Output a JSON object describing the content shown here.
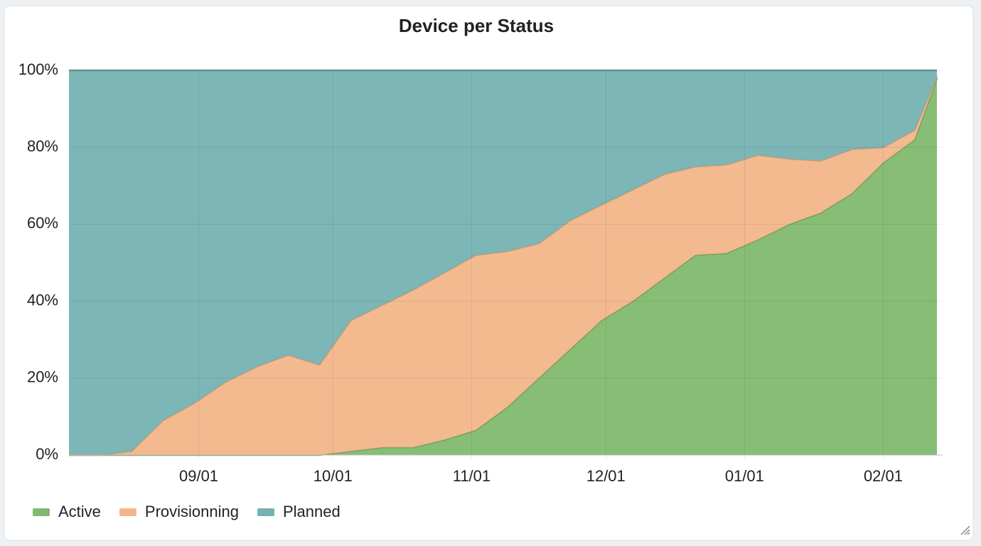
{
  "chart_data": {
    "type": "stacked-area",
    "title": "Device per Status",
    "x": [
      "08/03",
      "08/10",
      "08/17",
      "08/24",
      "08/31",
      "09/07",
      "09/14",
      "09/21",
      "09/28",
      "10/05",
      "10/12",
      "10/19",
      "10/26",
      "11/02",
      "11/09",
      "11/16",
      "11/23",
      "11/30",
      "12/07",
      "12/14",
      "12/21",
      "12/28",
      "01/04",
      "01/11",
      "01/18",
      "01/25",
      "02/01",
      "02/08",
      "02/13"
    ],
    "xlim": [
      "08/03",
      "02/13"
    ],
    "xticks": [
      "09/01",
      "10/01",
      "11/01",
      "12/01",
      "01/01",
      "02/01"
    ],
    "ylim": [
      0,
      100
    ],
    "yticks": [
      {
        "value": 0,
        "label": "0%"
      },
      {
        "value": 20,
        "label": "20%"
      },
      {
        "value": 40,
        "label": "40%"
      },
      {
        "value": 60,
        "label": "60%"
      },
      {
        "value": 80,
        "label": "80%"
      },
      {
        "value": 100,
        "label": "100%"
      }
    ],
    "grid": true,
    "legend": "bottom-left",
    "series": [
      {
        "name": "Active",
        "color": "#82b96f",
        "values": [
          0,
          0,
          0,
          0,
          0,
          0,
          0,
          0,
          0,
          1,
          2,
          2,
          4,
          6.5,
          12.5,
          20,
          27.5,
          35,
          40,
          46,
          52,
          52.5,
          56,
          60,
          63,
          68,
          76,
          82,
          98
        ]
      },
      {
        "name": "Provisionning",
        "color": "#f2b68a",
        "values": [
          0,
          0,
          1,
          9,
          13.5,
          19,
          23,
          26,
          23.5,
          34,
          37,
          41,
          43.5,
          45.5,
          40.5,
          35,
          33.5,
          30,
          29,
          27,
          23,
          23,
          22,
          17,
          13.5,
          11.5,
          4,
          2.5,
          0.5
        ]
      },
      {
        "name": "Planned",
        "color": "#76b2b2",
        "values": [
          100,
          100,
          99,
          91,
          86.5,
          81,
          77,
          74,
          76.5,
          65,
          61,
          57,
          52.5,
          48,
          47,
          45,
          39,
          35,
          31,
          27,
          25,
          24.5,
          22,
          23,
          23.5,
          20.5,
          20,
          15.5,
          1.5
        ]
      }
    ]
  }
}
